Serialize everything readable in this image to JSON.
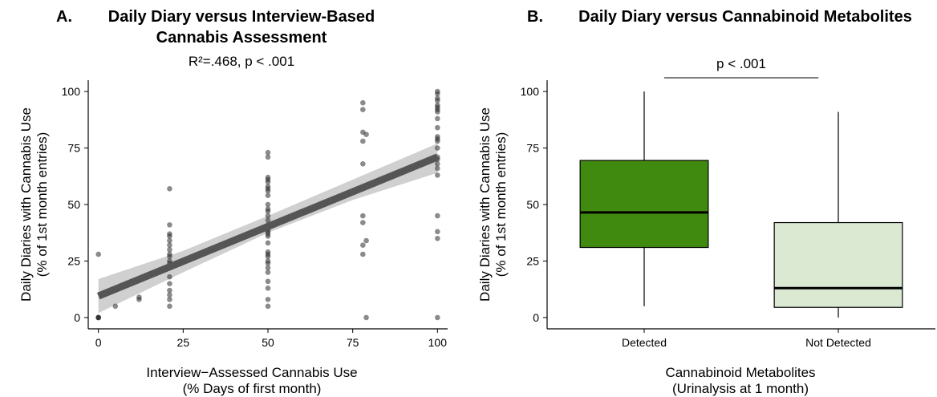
{
  "chart_data": [
    {
      "type": "scatter",
      "panel_letter": "A.",
      "title_lines": [
        "Daily Diary versus Interview-Based",
        "Cannabis Assessment"
      ],
      "subtitle": "R²=.468, p < .001",
      "xlabel_lines": [
        "Interview−Assessed Cannabis Use",
        "(% Days of first month)"
      ],
      "ylabel_lines": [
        "Daily Diaries with Cannabis Use",
        "(% of 1st month entries)"
      ],
      "xlim": [
        -3,
        103
      ],
      "ylim": [
        -5,
        105
      ],
      "xticks": [
        0,
        25,
        50,
        75,
        100
      ],
      "yticks": [
        0,
        25,
        50,
        75,
        100
      ],
      "grid": false,
      "point_color": "#2b2b2b",
      "regression": {
        "intercept": 9.5,
        "slope": 0.615,
        "band": [
          [
            0,
            2,
            17
          ],
          [
            25,
            20,
            29.5
          ],
          [
            50,
            37.5,
            45
          ],
          [
            75,
            52,
            61
          ],
          [
            100,
            64,
            77
          ]
        ],
        "line_color": "#555555",
        "band_color": "#d0d0d0"
      },
      "x": [
        0,
        0,
        0,
        0,
        0,
        5,
        12,
        12,
        21,
        21,
        21,
        21,
        21,
        21,
        21,
        21,
        21,
        21,
        21,
        21,
        21,
        21,
        21,
        21,
        21,
        21,
        50,
        50,
        50,
        50,
        50,
        50,
        50,
        50,
        50,
        50,
        50,
        50,
        50,
        50,
        50,
        50,
        50,
        50,
        50,
        50,
        50,
        50,
        50,
        50,
        50,
        50,
        50,
        50,
        50,
        50,
        50,
        50,
        78,
        78,
        78,
        78,
        78,
        78,
        78,
        78,
        78,
        79,
        79,
        79,
        100,
        100,
        100,
        100,
        100,
        100,
        100,
        100,
        100,
        100,
        100,
        100,
        100,
        100,
        100,
        100,
        100,
        100,
        100,
        100,
        100,
        100,
        100
      ],
      "y": [
        0,
        0,
        0,
        28,
        0,
        5,
        8,
        9,
        57,
        41,
        37,
        36,
        34,
        32,
        30,
        28,
        27,
        22,
        18,
        15,
        12,
        10,
        8,
        5,
        25,
        24,
        73,
        71,
        62,
        61,
        58,
        57,
        56,
        54,
        50,
        48,
        47,
        45,
        43,
        40,
        38,
        37,
        36,
        33,
        29,
        28,
        27,
        25,
        24,
        22,
        20,
        16,
        13,
        8,
        5,
        60,
        41,
        39,
        95,
        92,
        82,
        78,
        68,
        45,
        42,
        32,
        28,
        0,
        81,
        34,
        100,
        99,
        97,
        96,
        94,
        93,
        92,
        91,
        88,
        84,
        80,
        79,
        78,
        75,
        71,
        68,
        66,
        63,
        45,
        38,
        35,
        0,
        70
      ]
    },
    {
      "type": "box",
      "panel_letter": "B.",
      "title": "Daily Diary versus Cannabinoid Metabolites",
      "significance": "p < .001",
      "xlabel_lines": [
        "Cannabinoid Metabolites",
        "(Urinalysis at 1 month)"
      ],
      "ylabel_lines": [
        "Daily Diaries with Cannabis Use",
        "(% of 1st month entries)"
      ],
      "ylim": [
        -5,
        105
      ],
      "yticks": [
        0,
        25,
        50,
        75,
        100
      ],
      "grid": false,
      "categories": [
        "Detected",
        "Not Detected"
      ],
      "boxes": [
        {
          "category": "Detected",
          "min": 5,
          "q1": 31,
          "median": 46.5,
          "q3": 69.5,
          "max": 100,
          "color": "#3f8a0f"
        },
        {
          "category": "Not Detected",
          "min": 0,
          "q1": 4.5,
          "median": 13,
          "q3": 42,
          "max": 91,
          "color": "#dbe9d2"
        }
      ]
    }
  ]
}
